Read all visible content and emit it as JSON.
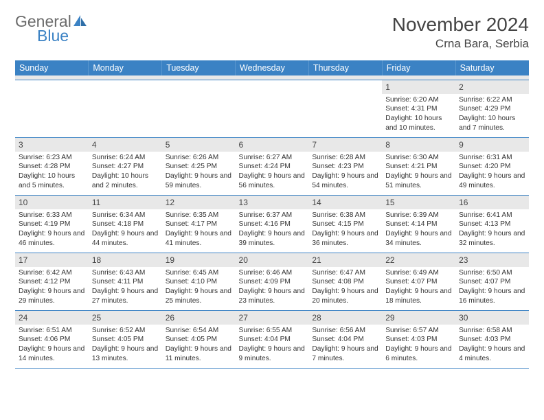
{
  "logo": {
    "word1": "General",
    "word2": "Blue",
    "word1_color": "#6b6b6b",
    "word2_color": "#3b82c4"
  },
  "title": "November 2024",
  "location": "Crna Bara, Serbia",
  "colors": {
    "header_bg": "#3b82c4",
    "header_text": "#ffffff",
    "daynum_bg": "#e8e8e8",
    "cell_border": "#3b82c4",
    "body_text": "#333333",
    "page_bg": "#ffffff"
  },
  "fonts": {
    "title_size_pt": 21,
    "location_size_pt": 13,
    "dayhead_size_pt": 9,
    "cell_size_pt": 8
  },
  "layout": {
    "columns": 7,
    "rows": 5,
    "first_weekday": "Sunday"
  },
  "day_headers": [
    "Sunday",
    "Monday",
    "Tuesday",
    "Wednesday",
    "Thursday",
    "Friday",
    "Saturday"
  ],
  "weeks": [
    [
      {
        "n": "",
        "sunrise": "",
        "sunset": "",
        "daylight": ""
      },
      {
        "n": "",
        "sunrise": "",
        "sunset": "",
        "daylight": ""
      },
      {
        "n": "",
        "sunrise": "",
        "sunset": "",
        "daylight": ""
      },
      {
        "n": "",
        "sunrise": "",
        "sunset": "",
        "daylight": ""
      },
      {
        "n": "",
        "sunrise": "",
        "sunset": "",
        "daylight": ""
      },
      {
        "n": "1",
        "sunrise": "Sunrise: 6:20 AM",
        "sunset": "Sunset: 4:31 PM",
        "daylight": "Daylight: 10 hours and 10 minutes."
      },
      {
        "n": "2",
        "sunrise": "Sunrise: 6:22 AM",
        "sunset": "Sunset: 4:29 PM",
        "daylight": "Daylight: 10 hours and 7 minutes."
      }
    ],
    [
      {
        "n": "3",
        "sunrise": "Sunrise: 6:23 AM",
        "sunset": "Sunset: 4:28 PM",
        "daylight": "Daylight: 10 hours and 5 minutes."
      },
      {
        "n": "4",
        "sunrise": "Sunrise: 6:24 AM",
        "sunset": "Sunset: 4:27 PM",
        "daylight": "Daylight: 10 hours and 2 minutes."
      },
      {
        "n": "5",
        "sunrise": "Sunrise: 6:26 AM",
        "sunset": "Sunset: 4:25 PM",
        "daylight": "Daylight: 9 hours and 59 minutes."
      },
      {
        "n": "6",
        "sunrise": "Sunrise: 6:27 AM",
        "sunset": "Sunset: 4:24 PM",
        "daylight": "Daylight: 9 hours and 56 minutes."
      },
      {
        "n": "7",
        "sunrise": "Sunrise: 6:28 AM",
        "sunset": "Sunset: 4:23 PM",
        "daylight": "Daylight: 9 hours and 54 minutes."
      },
      {
        "n": "8",
        "sunrise": "Sunrise: 6:30 AM",
        "sunset": "Sunset: 4:21 PM",
        "daylight": "Daylight: 9 hours and 51 minutes."
      },
      {
        "n": "9",
        "sunrise": "Sunrise: 6:31 AM",
        "sunset": "Sunset: 4:20 PM",
        "daylight": "Daylight: 9 hours and 49 minutes."
      }
    ],
    [
      {
        "n": "10",
        "sunrise": "Sunrise: 6:33 AM",
        "sunset": "Sunset: 4:19 PM",
        "daylight": "Daylight: 9 hours and 46 minutes."
      },
      {
        "n": "11",
        "sunrise": "Sunrise: 6:34 AM",
        "sunset": "Sunset: 4:18 PM",
        "daylight": "Daylight: 9 hours and 44 minutes."
      },
      {
        "n": "12",
        "sunrise": "Sunrise: 6:35 AM",
        "sunset": "Sunset: 4:17 PM",
        "daylight": "Daylight: 9 hours and 41 minutes."
      },
      {
        "n": "13",
        "sunrise": "Sunrise: 6:37 AM",
        "sunset": "Sunset: 4:16 PM",
        "daylight": "Daylight: 9 hours and 39 minutes."
      },
      {
        "n": "14",
        "sunrise": "Sunrise: 6:38 AM",
        "sunset": "Sunset: 4:15 PM",
        "daylight": "Daylight: 9 hours and 36 minutes."
      },
      {
        "n": "15",
        "sunrise": "Sunrise: 6:39 AM",
        "sunset": "Sunset: 4:14 PM",
        "daylight": "Daylight: 9 hours and 34 minutes."
      },
      {
        "n": "16",
        "sunrise": "Sunrise: 6:41 AM",
        "sunset": "Sunset: 4:13 PM",
        "daylight": "Daylight: 9 hours and 32 minutes."
      }
    ],
    [
      {
        "n": "17",
        "sunrise": "Sunrise: 6:42 AM",
        "sunset": "Sunset: 4:12 PM",
        "daylight": "Daylight: 9 hours and 29 minutes."
      },
      {
        "n": "18",
        "sunrise": "Sunrise: 6:43 AM",
        "sunset": "Sunset: 4:11 PM",
        "daylight": "Daylight: 9 hours and 27 minutes."
      },
      {
        "n": "19",
        "sunrise": "Sunrise: 6:45 AM",
        "sunset": "Sunset: 4:10 PM",
        "daylight": "Daylight: 9 hours and 25 minutes."
      },
      {
        "n": "20",
        "sunrise": "Sunrise: 6:46 AM",
        "sunset": "Sunset: 4:09 PM",
        "daylight": "Daylight: 9 hours and 23 minutes."
      },
      {
        "n": "21",
        "sunrise": "Sunrise: 6:47 AM",
        "sunset": "Sunset: 4:08 PM",
        "daylight": "Daylight: 9 hours and 20 minutes."
      },
      {
        "n": "22",
        "sunrise": "Sunrise: 6:49 AM",
        "sunset": "Sunset: 4:07 PM",
        "daylight": "Daylight: 9 hours and 18 minutes."
      },
      {
        "n": "23",
        "sunrise": "Sunrise: 6:50 AM",
        "sunset": "Sunset: 4:07 PM",
        "daylight": "Daylight: 9 hours and 16 minutes."
      }
    ],
    [
      {
        "n": "24",
        "sunrise": "Sunrise: 6:51 AM",
        "sunset": "Sunset: 4:06 PM",
        "daylight": "Daylight: 9 hours and 14 minutes."
      },
      {
        "n": "25",
        "sunrise": "Sunrise: 6:52 AM",
        "sunset": "Sunset: 4:05 PM",
        "daylight": "Daylight: 9 hours and 13 minutes."
      },
      {
        "n": "26",
        "sunrise": "Sunrise: 6:54 AM",
        "sunset": "Sunset: 4:05 PM",
        "daylight": "Daylight: 9 hours and 11 minutes."
      },
      {
        "n": "27",
        "sunrise": "Sunrise: 6:55 AM",
        "sunset": "Sunset: 4:04 PM",
        "daylight": "Daylight: 9 hours and 9 minutes."
      },
      {
        "n": "28",
        "sunrise": "Sunrise: 6:56 AM",
        "sunset": "Sunset: 4:04 PM",
        "daylight": "Daylight: 9 hours and 7 minutes."
      },
      {
        "n": "29",
        "sunrise": "Sunrise: 6:57 AM",
        "sunset": "Sunset: 4:03 PM",
        "daylight": "Daylight: 9 hours and 6 minutes."
      },
      {
        "n": "30",
        "sunrise": "Sunrise: 6:58 AM",
        "sunset": "Sunset: 4:03 PM",
        "daylight": "Daylight: 9 hours and 4 minutes."
      }
    ]
  ]
}
